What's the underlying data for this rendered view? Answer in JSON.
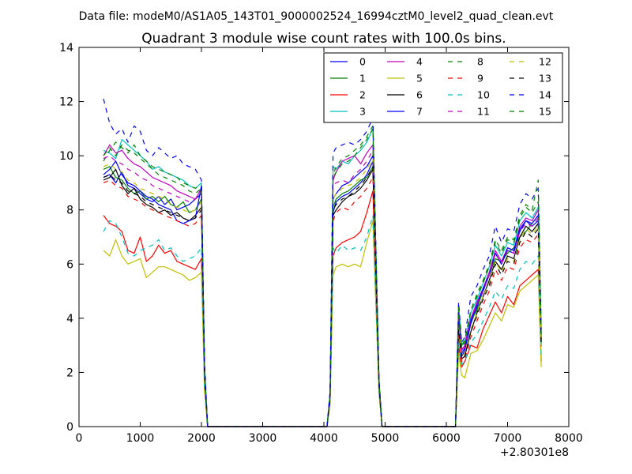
{
  "figure": {
    "suptitle": "Data file: modeM0/AS1A05_143T01_9000002524_16994cztM0_level2_quad_clean.evt",
    "offset_label": "+2.80301e8"
  },
  "chart_data": {
    "type": "line",
    "title": "Quadrant 3 module wise count rates with 100.0s bins.",
    "xlabel": "",
    "ylabel": "",
    "xlim": [
      0,
      8000
    ],
    "ylim": [
      0,
      14
    ],
    "x_offset": 280301000,
    "xticks": [
      0,
      1000,
      2000,
      3000,
      4000,
      5000,
      6000,
      7000,
      8000
    ],
    "yticks": [
      0,
      2,
      4,
      6,
      8,
      10,
      12,
      14
    ],
    "grid": false,
    "legend": {
      "placement": "top-right",
      "columns": 4
    },
    "x": [
      400,
      500,
      600,
      700,
      800,
      900,
      1000,
      1100,
      1200,
      1300,
      1400,
      1500,
      1600,
      1700,
      1800,
      1900,
      2000,
      2050,
      2100,
      2150,
      4050,
      4100,
      4150,
      4200,
      4300,
      4400,
      4500,
      4600,
      4700,
      4800,
      4900,
      4950,
      5000,
      6150,
      6200,
      6250,
      6300,
      6400,
      6500,
      6600,
      6700,
      6800,
      6900,
      7000,
      7100,
      7200,
      7300,
      7400,
      7500,
      7550
    ],
    "series": [
      {
        "name": "0",
        "color": "#0000ff",
        "dash": "solid",
        "values": [
          9.2,
          9.3,
          9.0,
          9.4,
          8.9,
          8.8,
          8.6,
          8.4,
          8.3,
          8.5,
          8.2,
          8.4,
          8.0,
          8.1,
          8.2,
          8.4,
          8.6,
          2.0,
          0.0,
          0.0,
          0.0,
          1.0,
          7.9,
          8.3,
          8.5,
          8.6,
          8.8,
          9.0,
          9.3,
          9.8,
          1.5,
          0.0,
          0.0,
          0.0,
          3.8,
          2.6,
          2.8,
          3.8,
          4.4,
          5.0,
          5.6,
          6.4,
          6.0,
          6.5,
          6.4,
          7.2,
          7.6,
          7.4,
          7.6,
          3.2
        ]
      },
      {
        "name": "1",
        "color": "#008000",
        "dash": "solid",
        "values": [
          9.5,
          9.6,
          9.2,
          9.1,
          8.8,
          8.6,
          8.7,
          8.4,
          8.5,
          8.3,
          8.5,
          8.2,
          8.1,
          8.3,
          7.9,
          8.0,
          8.4,
          1.9,
          0.0,
          0.0,
          0.0,
          1.1,
          8.1,
          8.4,
          8.6,
          8.7,
          8.9,
          9.1,
          9.2,
          9.6,
          1.6,
          0.0,
          0.0,
          0.0,
          4.1,
          2.9,
          2.9,
          3.9,
          4.3,
          5.1,
          5.6,
          6.2,
          6.1,
          6.4,
          6.6,
          7.0,
          7.2,
          7.5,
          7.8,
          3.0
        ]
      },
      {
        "name": "2",
        "color": "#ff0000",
        "dash": "solid",
        "values": [
          7.8,
          7.5,
          7.4,
          7.2,
          6.5,
          6.4,
          7.0,
          6.1,
          6.3,
          6.7,
          6.4,
          6.5,
          6.1,
          6.0,
          5.9,
          5.8,
          6.2,
          1.4,
          0.0,
          0.0,
          0.0,
          0.9,
          6.3,
          6.6,
          6.8,
          6.9,
          7.0,
          7.2,
          7.9,
          8.7,
          1.3,
          0.0,
          0.0,
          0.0,
          3.0,
          2.2,
          2.4,
          3.0,
          2.9,
          3.6,
          4.1,
          4.6,
          4.2,
          4.8,
          4.5,
          5.2,
          5.4,
          5.6,
          5.8,
          2.4
        ]
      },
      {
        "name": "3",
        "color": "#00bfbf",
        "dash": "solid",
        "values": [
          10.2,
          10.1,
          9.9,
          10.6,
          10.4,
          10.2,
          10.0,
          9.8,
          9.5,
          9.6,
          9.4,
          9.3,
          9.2,
          9.1,
          8.9,
          8.8,
          9.0,
          2.3,
          0.0,
          0.0,
          0.0,
          1.2,
          9.6,
          9.5,
          9.8,
          9.7,
          10.0,
          10.2,
          10.5,
          11.0,
          1.7,
          0.0,
          0.0,
          0.0,
          4.5,
          3.0,
          3.1,
          4.2,
          4.7,
          5.3,
          5.9,
          6.7,
          6.3,
          6.8,
          6.7,
          7.6,
          7.9,
          7.7,
          8.1,
          3.4
        ]
      },
      {
        "name": "4",
        "color": "#bf00bf",
        "dash": "solid",
        "values": [
          10.0,
          10.4,
          10.1,
          10.2,
          9.9,
          9.7,
          9.6,
          9.4,
          9.2,
          9.1,
          9.0,
          8.9,
          8.7,
          8.6,
          8.5,
          8.4,
          8.8,
          2.1,
          0.0,
          0.0,
          0.0,
          1.1,
          9.1,
          9.4,
          9.8,
          9.9,
          10.0,
          9.7,
          10.1,
          10.4,
          1.6,
          0.0,
          0.0,
          0.0,
          4.2,
          2.8,
          3.0,
          4.0,
          4.6,
          5.1,
          5.7,
          6.5,
          6.1,
          6.6,
          6.5,
          7.4,
          7.7,
          7.6,
          8.0,
          3.3
        ]
      },
      {
        "name": "5",
        "color": "#bfbf00",
        "dash": "solid",
        "values": [
          6.5,
          6.3,
          6.9,
          6.3,
          6.0,
          6.1,
          6.2,
          5.5,
          5.7,
          5.9,
          5.9,
          5.8,
          5.7,
          5.6,
          5.4,
          5.5,
          5.7,
          1.3,
          0.0,
          0.0,
          0.0,
          0.8,
          5.6,
          5.9,
          6.0,
          5.9,
          6.0,
          5.9,
          6.8,
          7.6,
          1.2,
          0.0,
          0.0,
          0.0,
          2.7,
          1.9,
          1.8,
          2.7,
          2.8,
          3.2,
          3.7,
          4.2,
          3.9,
          4.5,
          4.4,
          5.0,
          5.2,
          5.4,
          5.6,
          2.2
        ]
      },
      {
        "name": "6",
        "color": "#000000",
        "dash": "solid",
        "values": [
          9.1,
          9.2,
          9.5,
          8.9,
          8.6,
          8.8,
          8.4,
          8.2,
          8.1,
          7.9,
          8.0,
          7.8,
          7.9,
          7.7,
          7.6,
          7.8,
          8.1,
          1.9,
          0.0,
          0.0,
          0.0,
          1.0,
          7.8,
          8.0,
          8.3,
          8.5,
          8.6,
          8.8,
          9.1,
          9.5,
          1.5,
          0.0,
          0.0,
          0.0,
          3.6,
          2.5,
          2.6,
          3.5,
          4.2,
          4.8,
          5.4,
          6.1,
          5.8,
          6.3,
          6.2,
          7.0,
          7.4,
          7.2,
          7.5,
          3.1
        ]
      },
      {
        "name": "7",
        "color": "#0000ff",
        "dash": "solid",
        "values": [
          9.3,
          9.5,
          9.8,
          9.3,
          9.0,
          8.9,
          8.7,
          8.5,
          8.4,
          8.2,
          8.1,
          8.0,
          7.6,
          7.5,
          7.6,
          7.7,
          8.9,
          2.0,
          0.0,
          0.0,
          0.0,
          1.1,
          8.4,
          8.6,
          8.9,
          9.0,
          9.2,
          9.4,
          9.6,
          10.0,
          1.6,
          0.0,
          0.0,
          0.0,
          3.9,
          2.7,
          2.9,
          3.9,
          4.5,
          5.1,
          5.6,
          6.4,
          6.0,
          6.6,
          6.5,
          7.3,
          7.6,
          7.5,
          7.8,
          3.3
        ]
      },
      {
        "name": "8",
        "color": "#008000",
        "dash": "dashed",
        "values": [
          9.8,
          10.2,
          10.5,
          10.3,
          10.1,
          10.4,
          10.0,
          9.8,
          9.6,
          9.5,
          9.4,
          9.3,
          9.2,
          9.0,
          8.9,
          8.8,
          8.9,
          2.2,
          0.0,
          0.0,
          0.0,
          1.2,
          9.3,
          9.6,
          9.9,
          10.0,
          10.2,
          10.4,
          10.7,
          11.1,
          1.7,
          0.0,
          0.0,
          0.0,
          4.3,
          3.0,
          3.2,
          4.3,
          4.8,
          5.3,
          5.9,
          6.8,
          6.4,
          6.9,
          6.8,
          7.7,
          8.1,
          7.9,
          8.3,
          3.5
        ]
      },
      {
        "name": "9",
        "color": "#ff0000",
        "dash": "dashed",
        "values": [
          9.0,
          9.1,
          8.9,
          8.8,
          8.5,
          8.4,
          8.3,
          8.1,
          8.0,
          7.9,
          7.8,
          7.7,
          7.6,
          7.5,
          7.4,
          7.5,
          7.8,
          1.8,
          0.0,
          0.0,
          0.0,
          0.9,
          7.6,
          7.9,
          8.1,
          8.0,
          8.3,
          8.5,
          8.8,
          9.2,
          1.4,
          0.0,
          0.0,
          0.0,
          3.4,
          2.4,
          2.5,
          3.3,
          3.9,
          4.5,
          5.0,
          5.8,
          5.4,
          5.9,
          5.8,
          6.6,
          6.9,
          6.8,
          7.1,
          2.9
        ]
      },
      {
        "name": "10",
        "color": "#00bfbf",
        "dash": "dashed",
        "values": [
          7.2,
          7.6,
          7.5,
          7.0,
          6.4,
          6.3,
          6.5,
          6.6,
          6.7,
          6.9,
          6.5,
          6.6,
          6.3,
          6.1,
          6.2,
          6.3,
          6.6,
          1.5,
          0.0,
          0.0,
          0.0,
          0.9,
          6.6,
          6.4,
          6.7,
          6.5,
          6.6,
          6.5,
          7.0,
          7.8,
          1.3,
          0.0,
          0.0,
          0.0,
          3.1,
          2.3,
          2.4,
          3.1,
          3.4,
          3.9,
          4.4,
          5.0,
          4.7,
          5.2,
          5.1,
          5.8,
          6.1,
          6.0,
          6.3,
          2.6
        ]
      },
      {
        "name": "11",
        "color": "#bf00bf",
        "dash": "dashed",
        "values": [
          9.9,
          10.0,
          9.8,
          9.7,
          9.5,
          9.4,
          9.2,
          9.1,
          8.9,
          8.8,
          8.7,
          8.6,
          8.5,
          8.4,
          8.3,
          8.4,
          8.6,
          2.0,
          0.0,
          0.0,
          0.0,
          1.1,
          8.9,
          9.0,
          9.1,
          9.0,
          9.3,
          9.5,
          9.8,
          10.2,
          1.5,
          0.0,
          0.0,
          0.0,
          4.0,
          2.8,
          2.9,
          4.0,
          4.5,
          5.0,
          5.6,
          6.4,
          6.0,
          6.5,
          6.4,
          7.2,
          7.5,
          7.4,
          7.7,
          3.2
        ]
      },
      {
        "name": "12",
        "color": "#bfbf00",
        "dash": "dashed",
        "values": [
          9.6,
          9.7,
          9.5,
          9.4,
          9.1,
          9.0,
          8.8,
          8.7,
          8.6,
          8.5,
          8.4,
          8.2,
          8.1,
          8.0,
          7.9,
          8.0,
          8.3,
          1.9,
          0.0,
          0.0,
          0.0,
          1.0,
          8.4,
          8.6,
          8.8,
          8.9,
          9.0,
          9.2,
          9.5,
          9.9,
          1.5,
          0.0,
          0.0,
          0.0,
          3.7,
          2.6,
          2.7,
          3.6,
          4.2,
          4.8,
          5.3,
          6.1,
          5.7,
          6.2,
          6.1,
          6.9,
          7.3,
          7.1,
          7.4,
          3.0
        ]
      },
      {
        "name": "13",
        "color": "#000000",
        "dash": "dashed",
        "values": [
          9.2,
          9.3,
          9.1,
          9.0,
          8.7,
          8.6,
          8.5,
          8.3,
          8.2,
          8.1,
          8.0,
          7.9,
          7.8,
          7.7,
          7.6,
          7.7,
          8.0,
          1.9,
          0.0,
          0.0,
          0.0,
          1.0,
          8.0,
          8.2,
          8.4,
          8.5,
          8.7,
          8.9,
          9.2,
          9.6,
          1.5,
          0.0,
          0.0,
          0.0,
          3.6,
          2.5,
          2.6,
          3.5,
          4.1,
          4.7,
          5.2,
          6.0,
          5.6,
          6.1,
          6.0,
          6.8,
          7.2,
          7.0,
          7.3,
          3.0
        ]
      },
      {
        "name": "14",
        "color": "#0000ff",
        "dash": "dashed",
        "values": [
          12.1,
          11.2,
          10.8,
          11.0,
          10.5,
          11.1,
          10.9,
          10.2,
          10.0,
          10.3,
          10.1,
          9.9,
          10.0,
          9.7,
          9.6,
          9.5,
          9.1,
          2.4,
          0.0,
          0.0,
          0.0,
          1.3,
          10.1,
          10.3,
          10.4,
          10.5,
          10.4,
          10.6,
          10.9,
          11.4,
          1.8,
          0.0,
          0.0,
          0.0,
          4.6,
          3.1,
          3.3,
          4.8,
          5.2,
          5.8,
          6.3,
          7.4,
          6.8,
          7.3,
          7.2,
          8.2,
          8.6,
          8.4,
          8.8,
          3.6
        ]
      },
      {
        "name": "15",
        "color": "#008000",
        "dash": "dashed",
        "values": [
          10.0,
          10.3,
          10.0,
          10.4,
          10.2,
          10.1,
          9.9,
          9.7,
          9.5,
          9.3,
          9.2,
          9.1,
          9.0,
          8.9,
          8.7,
          8.6,
          8.8,
          2.1,
          0.0,
          0.0,
          0.0,
          1.2,
          9.2,
          9.4,
          9.7,
          9.8,
          10.0,
          10.3,
          10.6,
          11.0,
          1.6,
          0.0,
          0.0,
          0.0,
          4.4,
          2.9,
          3.1,
          4.3,
          4.9,
          5.4,
          6.0,
          6.9,
          6.5,
          7.0,
          6.9,
          7.8,
          8.2,
          8.0,
          9.1,
          3.4
        ]
      }
    ]
  }
}
